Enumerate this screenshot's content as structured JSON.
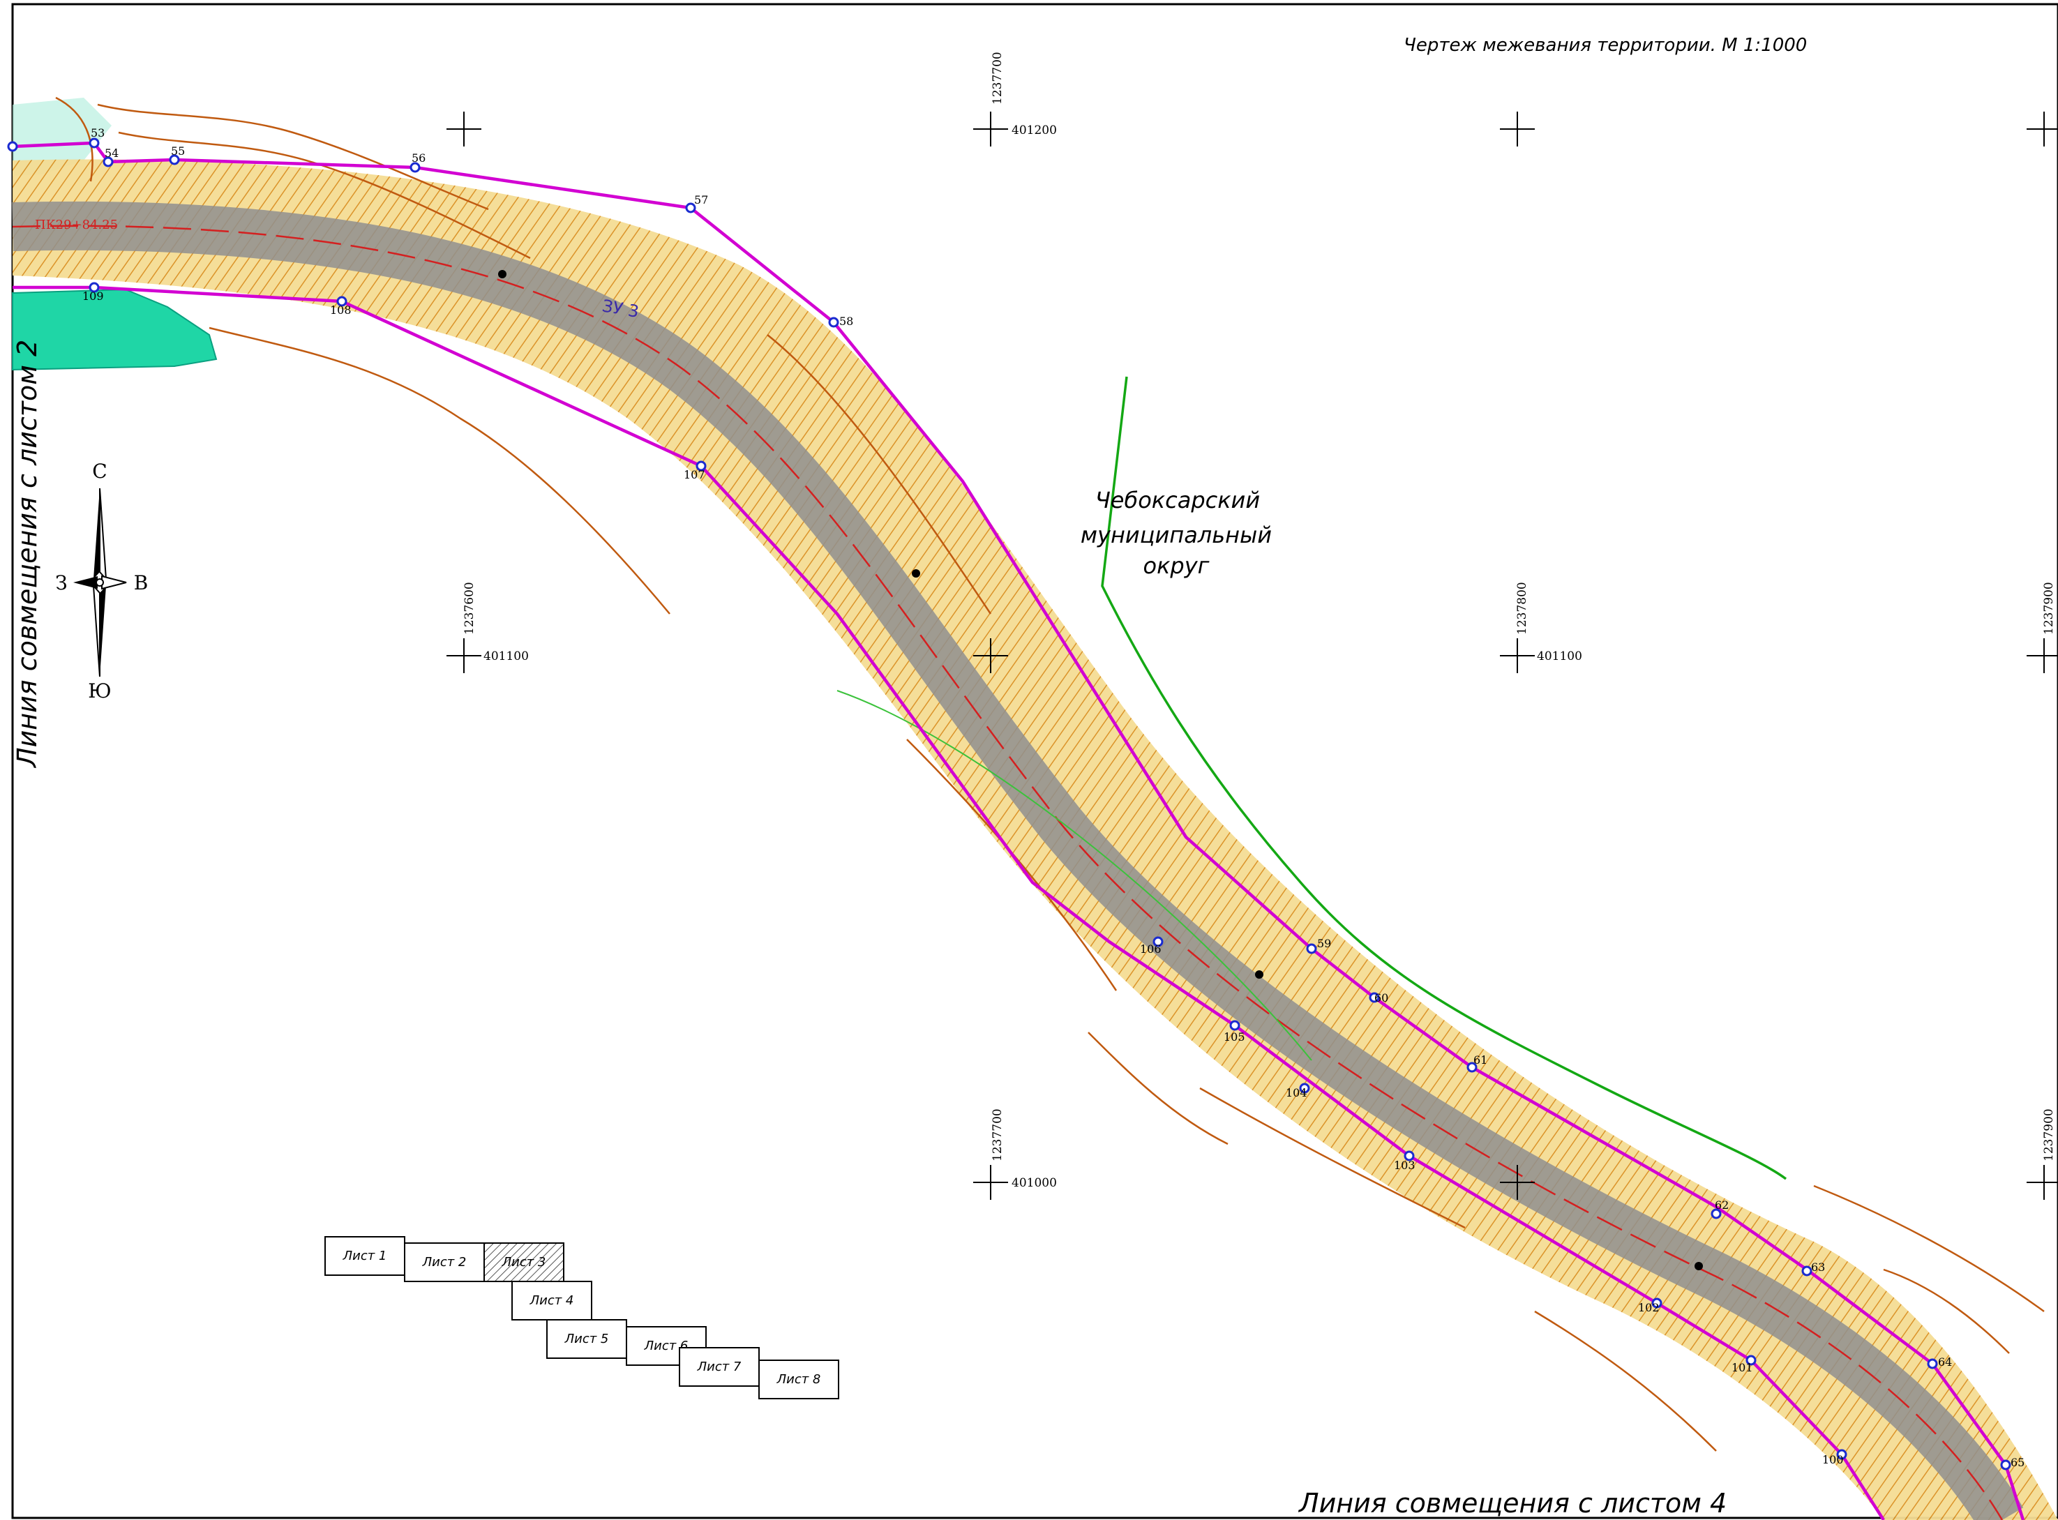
{
  "title": "Чертеж межевания территории. М 1:1000",
  "left_join_line": "Линия совмещения с листом 2",
  "bottom_join_line": "Линия совмещения с листом 4",
  "municipality": {
    "line1": "Чебоксарский",
    "line2": "муниципальный",
    "line3": "округ"
  },
  "compass": {
    "north": "С",
    "south": "Ю",
    "west": "З",
    "east": "В"
  },
  "parcel_label": "ЗУ 3",
  "picket_label": "ПК29+84.25",
  "grid": {
    "x_labels": [
      "1237600",
      "1237700",
      "1237800",
      "1237900"
    ],
    "y_labels": [
      "401200",
      "401100",
      "401000"
    ]
  },
  "boundary_points_top": [
    "53",
    "54",
    "55",
    "56",
    "57",
    "58",
    "59",
    "60",
    "61",
    "62",
    "63",
    "64",
    "65"
  ],
  "boundary_points_bottom": [
    "109",
    "108",
    "107",
    "106",
    "105",
    "104",
    "103",
    "102",
    "101",
    "100"
  ],
  "sheet_index": [
    {
      "label": "Лист 1",
      "active": false
    },
    {
      "label": "Лист 2",
      "active": false
    },
    {
      "label": "Лист 3",
      "active": true
    },
    {
      "label": "Лист 4",
      "active": false
    },
    {
      "label": "Лист 5",
      "active": false
    },
    {
      "label": "Лист 6",
      "active": false
    },
    {
      "label": "Лист 7",
      "active": false
    },
    {
      "label": "Лист 8",
      "active": false
    }
  ],
  "colors": {
    "boundary": "#d200d2",
    "road": "#8f8f8f",
    "fill": "#f3d98a",
    "contour": "#c05a10",
    "municipal_line": "#14a814",
    "water": "#1fd6a6",
    "text_red": "#d42020",
    "text_blue": "#3a2aa8"
  }
}
